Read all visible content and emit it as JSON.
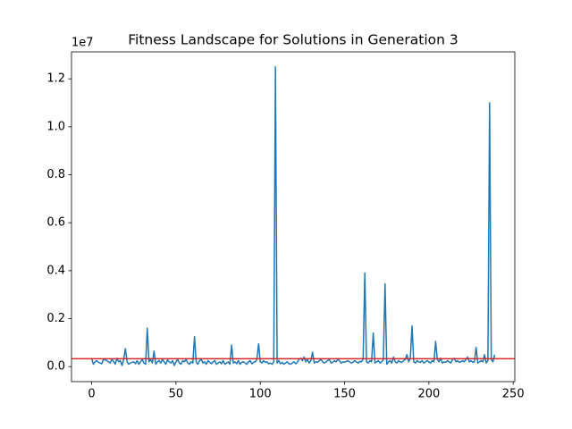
{
  "chart_data": {
    "type": "line",
    "title": "Fitness Landscape for Solutions in Generation 3",
    "y_offset_label": "1e7",
    "color": "#1f77b4",
    "hline": 0.033,
    "hline_color": "#d62728",
    "x": [
      0,
      1,
      2,
      3,
      4,
      5,
      6,
      7,
      8,
      9,
      10,
      11,
      12,
      13,
      14,
      15,
      16,
      17,
      18,
      19,
      20,
      21,
      22,
      23,
      24,
      25,
      26,
      27,
      28,
      29,
      30,
      31,
      32,
      33,
      34,
      35,
      36,
      37,
      38,
      39,
      40,
      41,
      42,
      43,
      44,
      45,
      46,
      47,
      48,
      49,
      50,
      51,
      52,
      53,
      54,
      55,
      56,
      57,
      58,
      59,
      60,
      61,
      62,
      63,
      64,
      65,
      66,
      67,
      68,
      69,
      70,
      71,
      72,
      73,
      74,
      75,
      76,
      77,
      78,
      79,
      80,
      81,
      82,
      83,
      84,
      85,
      86,
      87,
      88,
      89,
      90,
      91,
      92,
      93,
      94,
      95,
      96,
      97,
      98,
      99,
      100,
      101,
      102,
      103,
      104,
      105,
      106,
      107,
      108,
      109,
      110,
      111,
      112,
      113,
      114,
      115,
      116,
      117,
      118,
      119,
      120,
      121,
      122,
      123,
      124,
      125,
      126,
      127,
      128,
      129,
      130,
      131,
      132,
      133,
      134,
      135,
      136,
      137,
      138,
      139,
      140,
      141,
      142,
      143,
      144,
      145,
      146,
      147,
      148,
      149,
      150,
      151,
      152,
      153,
      154,
      155,
      156,
      157,
      158,
      159,
      160,
      161,
      162,
      163,
      164,
      165,
      166,
      167,
      168,
      169,
      170,
      171,
      172,
      173,
      174,
      175,
      176,
      177,
      178,
      179,
      180,
      181,
      182,
      183,
      184,
      185,
      186,
      187,
      188,
      189,
      190,
      191,
      192,
      193,
      194,
      195,
      196,
      197,
      198,
      199,
      200,
      201,
      202,
      203,
      204,
      205,
      206,
      207,
      208,
      209,
      210,
      211,
      212,
      213,
      214,
      215,
      216,
      217,
      218,
      219,
      220,
      221,
      222,
      223,
      224,
      225,
      226,
      227,
      228,
      229,
      230,
      231,
      232,
      233,
      234,
      235,
      236,
      237,
      238,
      239
    ],
    "values": [
      0.035,
      0.01,
      0.02,
      0.025,
      0.018,
      0.015,
      0.012,
      0.03,
      0.028,
      0.025,
      0.02,
      0.015,
      0.03,
      0.022,
      0.01,
      0.035,
      0.02,
      0.025,
      0.005,
      0.03,
      0.075,
      0.02,
      0.01,
      0.015,
      0.018,
      0.02,
      0.012,
      0.025,
      0.01,
      0.02,
      0.03,
      0.015,
      0.01,
      0.16,
      0.02,
      0.03,
      0.015,
      0.065,
      0.01,
      0.02,
      0.025,
      0.015,
      0.03,
      0.02,
      0.01,
      0.028,
      0.02,
      0.015,
      0.025,
      0.005,
      0.02,
      0.03,
      0.015,
      0.01,
      0.025,
      0.02,
      0.03,
      0.015,
      0.01,
      0.02,
      0.015,
      0.125,
      0.02,
      0.01,
      0.025,
      0.03,
      0.015,
      0.02,
      0.01,
      0.025,
      0.018,
      0.012,
      0.02,
      0.025,
      0.01,
      0.015,
      0.02,
      0.012,
      0.025,
      0.01,
      0.015,
      0.02,
      0.01,
      0.09,
      0.015,
      0.02,
      0.012,
      0.025,
      0.01,
      0.018,
      0.02,
      0.015,
      0.01,
      0.02,
      0.025,
      0.012,
      0.018,
      0.02,
      0.03,
      0.095,
      0.02,
      0.015,
      0.025,
      0.018,
      0.02,
      0.012,
      0.015,
      0.01,
      0.02,
      1.25,
      0.015,
      0.025,
      0.012,
      0.018,
      0.01,
      0.015,
      0.02,
      0.012,
      0.01,
      0.015,
      0.02,
      0.012,
      0.018,
      0.03,
      0.035,
      0.025,
      0.04,
      0.02,
      0.03,
      0.015,
      0.025,
      0.06,
      0.015,
      0.02,
      0.018,
      0.025,
      0.03,
      0.02,
      0.015,
      0.02,
      0.025,
      0.03,
      0.015,
      0.018,
      0.025,
      0.02,
      0.03,
      0.025,
      0.015,
      0.02,
      0.018,
      0.022,
      0.025,
      0.02,
      0.015,
      0.018,
      0.025,
      0.02,
      0.015,
      0.022,
      0.02,
      0.03,
      0.39,
      0.02,
      0.015,
      0.025,
      0.02,
      0.14,
      0.015,
      0.02,
      0.025,
      0.015,
      0.02,
      0.03,
      0.345,
      0.01,
      0.02,
      0.025,
      0.015,
      0.04,
      0.02,
      0.015,
      0.025,
      0.02,
      0.018,
      0.025,
      0.03,
      0.05,
      0.02,
      0.035,
      0.17,
      0.02,
      0.015,
      0.025,
      0.02,
      0.018,
      0.025,
      0.015,
      0.02,
      0.025,
      0.02,
      0.015,
      0.025,
      0.02,
      0.105,
      0.03,
      0.02,
      0.035,
      0.015,
      0.02,
      0.018,
      0.025,
      0.02,
      0.015,
      0.03,
      0.035,
      0.02,
      0.025,
      0.018,
      0.02,
      0.025,
      0.02,
      0.03,
      0.04,
      0.02,
      0.025,
      0.018,
      0.02,
      0.08,
      0.015,
      0.02,
      0.025,
      0.02,
      0.05,
      0.015,
      0.025,
      1.1,
      0.03,
      0.02,
      0.05
    ],
    "xlim": [
      -11.95,
      250.95
    ],
    "xticks": [
      0,
      50,
      100,
      150,
      200,
      250
    ],
    "ylim": [
      -0.0625,
      1.3125
    ],
    "yticks": [
      {
        "value": 0,
        "label": "0.0"
      },
      {
        "value": 0.2,
        "label": "0.2"
      },
      {
        "value": 0.4,
        "label": "0.4"
      },
      {
        "value": 0.6,
        "label": "0.6"
      },
      {
        "value": 0.8,
        "label": "0.8"
      },
      {
        "value": 1.0,
        "label": "1.0"
      },
      {
        "value": 1.2,
        "label": "1.2"
      }
    ],
    "grid": false
  }
}
